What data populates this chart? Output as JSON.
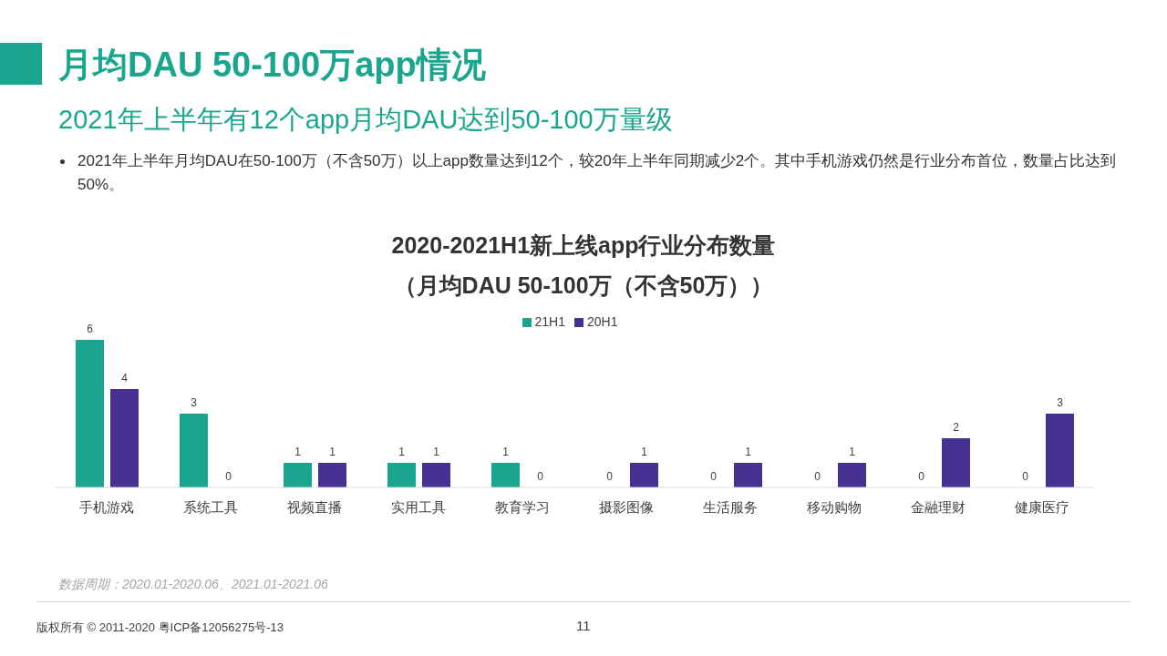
{
  "chart_data": {
    "type": "bar",
    "title": "月均DAU 50-100万app情况",
    "subtitle": "2021年上半年有12个app月均DAU达到50-100万量级",
    "annotations": [
      "2021年上半年月均DAU在50-100万（不含50万）以上app数量达到12个，较20年上半年同期减少2个。其中手机游戏仍然是行业分布首位，数量占比达到50%。",
      "2020-2021H1新上线app行业分布数量",
      "（月均DAU 50-100万（不含50万））",
      "数据周期：2020.01-2020.06、2021.01-2021.06",
      "版权所有 © 2011-2020 粤ICP备12056275号-13",
      "11"
    ],
    "categories": [
      "手机游戏",
      "系统工具",
      "视频直播",
      "实用工具",
      "教育学习",
      "摄影图像",
      "生活服务",
      "移动购物",
      "金融理财",
      "健康医疗"
    ],
    "series": [
      {
        "name": "21H1",
        "color": "#1aa58f",
        "values": [
          6,
          3,
          1,
          1,
          1,
          0,
          0,
          0,
          0,
          0
        ]
      },
      {
        "name": "20H1",
        "color": "#463193",
        "values": [
          4,
          0,
          1,
          1,
          0,
          1,
          1,
          1,
          2,
          3
        ]
      }
    ],
    "data_labels": true,
    "legend": "top",
    "grid": false
  }
}
